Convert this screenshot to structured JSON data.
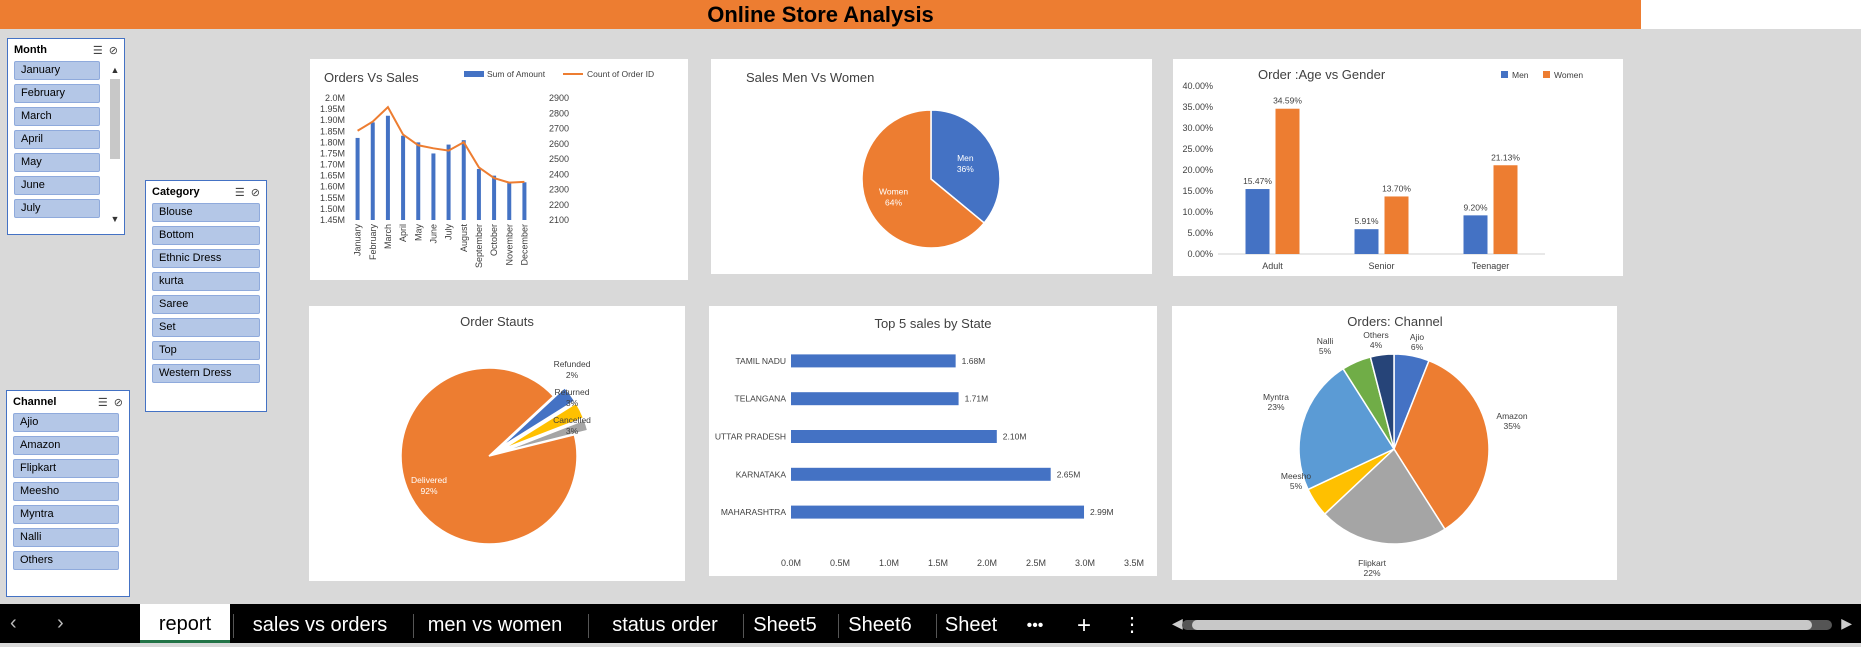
{
  "title": "Online Store Analysis",
  "slicers": {
    "month": {
      "title": "Month",
      "items": [
        "January",
        "February",
        "March",
        "April",
        "May",
        "June",
        "July"
      ]
    },
    "category": {
      "title": "Category",
      "items": [
        "Blouse",
        "Bottom",
        "Ethnic Dress",
        "kurta",
        "Saree",
        "Set",
        "Top",
        "Western Dress"
      ]
    },
    "channel": {
      "title": "Channel",
      "items": [
        "Ajio",
        "Amazon",
        "Flipkart",
        "Meesho",
        "Myntra",
        "Nalli",
        "Others"
      ]
    }
  },
  "colors": {
    "blue": "#4472c4",
    "orange": "#ed7d31",
    "gray": "#a5a5a5",
    "yellow": "#ffc000",
    "lightblue": "#5b9bd5",
    "green": "#70ad47",
    "navy": "#264478"
  },
  "chart_data": [
    {
      "id": "orders_vs_sales",
      "type": "bar",
      "title": "Orders Vs Sales",
      "categories": [
        "January",
        "February",
        "March",
        "April",
        "May",
        "June",
        "July",
        "August",
        "September",
        "October",
        "November",
        "December"
      ],
      "series": [
        {
          "name": "Sum of Amount",
          "type": "bar",
          "axis": "left",
          "values": [
            1.82,
            1.89,
            1.92,
            1.83,
            1.8,
            1.75,
            1.79,
            1.81,
            1.68,
            1.65,
            1.62,
            1.62
          ]
        },
        {
          "name": "Count of Order ID",
          "type": "line",
          "axis": "right",
          "values": [
            2685,
            2745,
            2840,
            2660,
            2590,
            2570,
            2555,
            2610,
            2445,
            2375,
            2345,
            2350
          ]
        }
      ],
      "y_left_ticks": [
        "2.0M",
        "1.95M",
        "1.90M",
        "1.85M",
        "1.80M",
        "1.75M",
        "1.70M",
        "1.65M",
        "1.60M",
        "1.55M",
        "1.50M",
        "1.45M"
      ],
      "y_right_ticks": [
        "2900",
        "2800",
        "2700",
        "2600",
        "2500",
        "2400",
        "2300",
        "2200",
        "2100"
      ],
      "ylim_left": [
        1.45,
        2.0
      ],
      "ylim_right": [
        2100,
        2900
      ],
      "legend": "top"
    },
    {
      "id": "sales_men_women",
      "type": "pie",
      "title": "Sales Men Vs Women",
      "slices": [
        {
          "name": "Men",
          "value": 36,
          "label": "36%"
        },
        {
          "name": "Women",
          "value": 64,
          "label": "64%"
        }
      ]
    },
    {
      "id": "age_vs_gender",
      "type": "bar",
      "title": "Order :Age vs Gender",
      "categories": [
        "Adult",
        "Senior",
        "Teenager"
      ],
      "series": [
        {
          "name": "Men",
          "values": [
            15.47,
            5.91,
            9.2
          ],
          "labels": [
            "15.47%",
            "5.91%",
            "9.20%"
          ]
        },
        {
          "name": "Women",
          "values": [
            34.59,
            13.7,
            21.13
          ],
          "labels": [
            "34.59%",
            "13.70%",
            "21.13%"
          ]
        }
      ],
      "y_ticks": [
        "40.00%",
        "35.00%",
        "30.00%",
        "25.00%",
        "20.00%",
        "15.00%",
        "10.00%",
        "5.00%",
        "0.00%"
      ],
      "ylim": [
        0,
        40
      ],
      "legend": "top-right"
    },
    {
      "id": "order_status",
      "type": "pie",
      "title": "Order Stauts",
      "slices": [
        {
          "name": "Delivered",
          "value": 92,
          "label": "92%"
        },
        {
          "name": "Cancelled",
          "value": 3,
          "label": "3%"
        },
        {
          "name": "Returned",
          "value": 3,
          "label": "3%"
        },
        {
          "name": "Refunded",
          "value": 2,
          "label": "2%"
        }
      ]
    },
    {
      "id": "top5_states",
      "type": "bar",
      "orientation": "horizontal",
      "title": "Top 5 sales by State",
      "categories": [
        "TAMIL NADU",
        "TELANGANA",
        "UTTAR PRADESH",
        "KARNATAKA",
        "MAHARASHTRA"
      ],
      "values": [
        1.68,
        1.71,
        2.1,
        2.65,
        2.99
      ],
      "labels": [
        "1.68M",
        "1.71M",
        "2.10M",
        "2.65M",
        "2.99M"
      ],
      "x_ticks": [
        "0.0M",
        "0.5M",
        "1.0M",
        "1.5M",
        "2.0M",
        "2.5M",
        "3.0M",
        "3.5M"
      ],
      "xlim": [
        0,
        3.5
      ]
    },
    {
      "id": "orders_channel",
      "type": "pie",
      "title": "Orders: Channel",
      "slices": [
        {
          "name": "Ajio",
          "value": 6,
          "label": "6%"
        },
        {
          "name": "Amazon",
          "value": 35,
          "label": "35%"
        },
        {
          "name": "Flipkart",
          "value": 22,
          "label": "22%"
        },
        {
          "name": "Meesho",
          "value": 5,
          "label": "5%"
        },
        {
          "name": "Myntra",
          "value": 23,
          "label": "23%"
        },
        {
          "name": "Nalli",
          "value": 5,
          "label": "5%"
        },
        {
          "name": "Others",
          "value": 4,
          "label": "4%"
        }
      ]
    }
  ],
  "sheet_tabs": [
    "report",
    "sales vs orders",
    "men vs women",
    "status order",
    "Sheet5",
    "Sheet6",
    "Sheet"
  ],
  "more_tabs_glyph": "•••",
  "add_tab_glyph": "+",
  "menu_glyph": "⋮",
  "nav": {
    "prev": "‹",
    "next": "›"
  }
}
